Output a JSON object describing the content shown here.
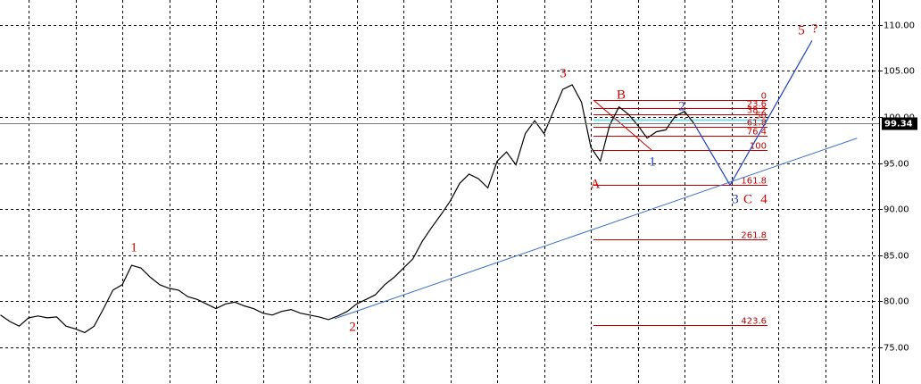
{
  "chart_data": {
    "type": "line",
    "x": [
      -6,
      -4,
      -2,
      0,
      2,
      4,
      6,
      8,
      10,
      12,
      14,
      16,
      18,
      20,
      22,
      24,
      26,
      28,
      30,
      32,
      34,
      36,
      38,
      40,
      42,
      44,
      46,
      48,
      50,
      52,
      54,
      56,
      58,
      60,
      62,
      64,
      66,
      68,
      70,
      72,
      74,
      76,
      78,
      80,
      82,
      84,
      86,
      88,
      90,
      92,
      94,
      96,
      98,
      100,
      102,
      104,
      106,
      108,
      110,
      112,
      114,
      116,
      118,
      120,
      122,
      124,
      126,
      128,
      130,
      132,
      134,
      136,
      138,
      140,
      142
    ],
    "series": [
      {
        "color": "#000000",
        "values": [
          78.5,
          77.8,
          77.3,
          78.2,
          78.4,
          78.2,
          78.3,
          77.3,
          77.0,
          76.6,
          77.3,
          79.2,
          81.2,
          81.8,
          83.9,
          83.6,
          82.6,
          81.8,
          81.4,
          81.2,
          80.5,
          80.2,
          79.7,
          79.2,
          79.7,
          79.9,
          79.5,
          79.2,
          78.7,
          78.5,
          78.9,
          79.1,
          78.7,
          78.5,
          78.3,
          78.0,
          78.4,
          78.9,
          79.7,
          80.2,
          80.7,
          81.8,
          82.6,
          83.6,
          84.6,
          86.5,
          88.0,
          89.4,
          90.9,
          92.8,
          93.8,
          93.3,
          92.3,
          95.2,
          96.2,
          94.8,
          98.2,
          99.6,
          98.2,
          100.6,
          103.0,
          103.5,
          101.6,
          96.7,
          95.2,
          99.1,
          101.1,
          100.3,
          99.1,
          97.7,
          98.4,
          98.6,
          100.1,
          100.6,
          99.3
        ]
      }
    ],
    "xlim": [
      -6.1,
      181.5
    ],
    "xticks": [
      0,
      10,
      20,
      30,
      40,
      50,
      60,
      70,
      80,
      90,
      100,
      110,
      120,
      130,
      140,
      150,
      160,
      170,
      180
    ],
    "ylim": [
      71.5,
      112.7
    ],
    "yticks": [
      {
        "value": 75,
        "label": "75.00"
      },
      {
        "value": 80,
        "label": "80.00"
      },
      {
        "value": 85,
        "label": "85.00"
      },
      {
        "value": 90,
        "label": "90.00"
      },
      {
        "value": 95,
        "label": "95.00"
      },
      {
        "value": 100,
        "label": "100.00"
      },
      {
        "value": 105,
        "label": "105.00"
      },
      {
        "value": 110,
        "label": "110.00"
      }
    ],
    "grid": true,
    "current_price": 99.34,
    "trendline": {
      "color": "#3a6fc4",
      "x": [
        65.3,
        176.8
      ],
      "values": [
        78.1,
        97.7
      ]
    },
    "projection": {
      "color": "#1f3fbf",
      "x": [
        142,
        149.7,
        167.2
      ],
      "values": [
        99.3,
        92.6,
        108.3
      ]
    },
    "fib_color": "#c00000",
    "fib_levels": [
      {
        "label": 0,
        "price": 101.85
      },
      {
        "label": 23.6,
        "price": 100.97
      },
      {
        "label": 38.2,
        "price": 100.3
      },
      {
        "label": 50,
        "price": 99.7
      },
      {
        "label": 61.8,
        "price": 98.9
      },
      {
        "label": 76.4,
        "price": 97.96
      },
      {
        "label": 100,
        "price": 96.4
      },
      {
        "label": 161.8,
        "price": 92.6
      },
      {
        "label": 261.8,
        "price": 86.7
      },
      {
        "label": 423.6,
        "price": 77.4
      }
    ],
    "wave_labels": [
      {
        "text": "1",
        "color": "#d00000"
      },
      {
        "text": "2",
        "color": "#d00000"
      },
      {
        "text": "3",
        "color": "#d00000"
      },
      {
        "text": "A",
        "color": "#d00000"
      },
      {
        "text": "B",
        "color": "#d00000"
      },
      {
        "text": "1",
        "color": "#1f3fbf"
      },
      {
        "text": "2",
        "color": "#1f3fbf"
      },
      {
        "text": "3",
        "color": "#1f3fbf"
      },
      {
        "text": "C",
        "color": "#d00000"
      },
      {
        "text": "4",
        "color": "#d00000"
      },
      {
        "text": "5",
        "color": "#d00000"
      },
      {
        "text": "?",
        "color": "#d00000"
      }
    ]
  }
}
